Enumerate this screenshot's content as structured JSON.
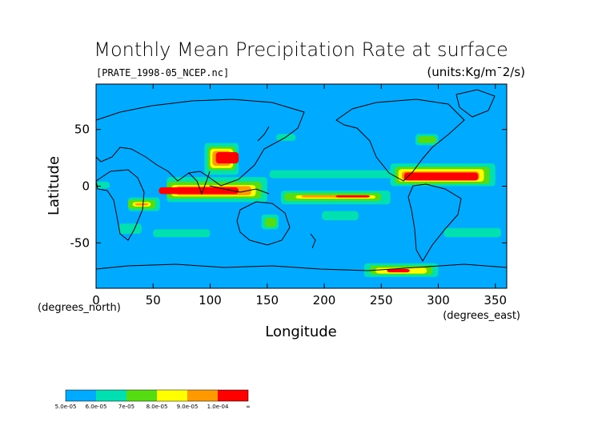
{
  "chart_data": {
    "type": "heatmap",
    "title": "Monthly Mean Precipitation Rate at surface",
    "source_file": "[PRATE_1998-05_NCEP.nc]",
    "units": "(units:Kg/m¯2/s)",
    "xlabel": "Longitude",
    "ylabel": "Latitude",
    "x_unit_note": "(degrees_east)",
    "y_unit_note": "(degrees_north)",
    "xlim": [
      0,
      360
    ],
    "ylim": [
      -90,
      90
    ],
    "x_ticks": [
      0,
      50,
      100,
      150,
      200,
      250,
      300,
      350
    ],
    "y_ticks": [
      -50,
      0,
      50
    ],
    "background_color": "#00aaff",
    "colorbar": {
      "labels": [
        "5.0e-05",
        "6.0e-05",
        "7e-05",
        "8.0e-05",
        "9.0e-05",
        "1.0e-04",
        "∞"
      ],
      "colors": [
        "#00aaff",
        "#00e0b0",
        "#55dd11",
        "#ffff00",
        "#ff9900",
        "#ff0000"
      ]
    },
    "regions": [
      {
        "level": 1,
        "lon": [
          28,
          56
        ],
        "lat": [
          -22,
          -10
        ]
      },
      {
        "level": 1,
        "lon": [
          62,
          150
        ],
        "lat": [
          -14,
          8
        ]
      },
      {
        "level": 1,
        "lon": [
          162,
          258
        ],
        "lat": [
          -16,
          -4
        ]
      },
      {
        "level": 1,
        "lon": [
          152,
          265
        ],
        "lat": [
          7,
          14
        ]
      },
      {
        "level": 1,
        "lon": [
          95,
          125
        ],
        "lat": [
          10,
          38
        ]
      },
      {
        "level": 1,
        "lon": [
          258,
          350
        ],
        "lat": [
          0,
          20
        ]
      },
      {
        "level": 1,
        "lon": [
          20,
          40
        ],
        "lat": [
          -42,
          -33
        ]
      },
      {
        "level": 1,
        "lon": [
          50,
          100
        ],
        "lat": [
          -45,
          -38
        ]
      },
      {
        "level": 1,
        "lon": [
          305,
          355
        ],
        "lat": [
          -45,
          -37
        ]
      },
      {
        "level": 1,
        "lon": [
          235,
          300
        ],
        "lat": [
          -80,
          -68
        ]
      },
      {
        "level": 1,
        "lon": [
          145,
          160
        ],
        "lat": [
          -38,
          -25
        ]
      },
      {
        "level": 1,
        "lon": [
          158,
          175
        ],
        "lat": [
          40,
          46
        ]
      },
      {
        "level": 1,
        "lon": [
          280,
          300
        ],
        "lat": [
          36,
          46
        ]
      },
      {
        "level": 1,
        "lon": [
          0,
          12
        ],
        "lat": [
          -2,
          4
        ]
      },
      {
        "level": 1,
        "lon": [
          198,
          230
        ],
        "lat": [
          -30,
          -22
        ]
      },
      {
        "level": 2,
        "lon": [
          28,
          52
        ],
        "lat": [
          -20,
          -12
        ]
      },
      {
        "level": 2,
        "lon": [
          62,
          145
        ],
        "lat": [
          -11,
          4
        ]
      },
      {
        "level": 2,
        "lon": [
          165,
          250
        ],
        "lat": [
          -13,
          -6
        ]
      },
      {
        "level": 2,
        "lon": [
          98,
          122
        ],
        "lat": [
          14,
          35
        ]
      },
      {
        "level": 2,
        "lon": [
          262,
          345
        ],
        "lat": [
          2,
          17
        ]
      },
      {
        "level": 2,
        "lon": [
          240,
          295
        ],
        "lat": [
          -78,
          -70
        ]
      },
      {
        "level": 2,
        "lon": [
          282,
          298
        ],
        "lat": [
          38,
          44
        ]
      },
      {
        "level": 2,
        "lon": [
          148,
          158
        ],
        "lat": [
          -36,
          -28
        ]
      },
      {
        "level": 3,
        "lon": [
          32,
          48
        ],
        "lat": [
          -18,
          -14
        ]
      },
      {
        "level": 3,
        "lon": [
          66,
          140
        ],
        "lat": [
          -9,
          1
        ]
      },
      {
        "level": 3,
        "lon": [
          175,
          245
        ],
        "lat": [
          -11,
          -8
        ]
      },
      {
        "level": 3,
        "lon": [
          100,
          120
        ],
        "lat": [
          16,
          33
        ]
      },
      {
        "level": 3,
        "lon": [
          265,
          340
        ],
        "lat": [
          4,
          15
        ]
      },
      {
        "level": 3,
        "lon": [
          245,
          290
        ],
        "lat": [
          -77,
          -72
        ]
      },
      {
        "level": 4,
        "lon": [
          34,
          46
        ],
        "lat": [
          -17,
          -15
        ]
      },
      {
        "level": 4,
        "lon": [
          70,
          136
        ],
        "lat": [
          -8,
          0
        ]
      },
      {
        "level": 4,
        "lon": [
          180,
          240
        ],
        "lat": [
          -10,
          -8
        ]
      },
      {
        "level": 4,
        "lon": [
          102,
          118
        ],
        "lat": [
          18,
          31
        ]
      },
      {
        "level": 4,
        "lon": [
          268,
          336
        ],
        "lat": [
          5,
          13
        ]
      },
      {
        "level": 5,
        "lon": [
          55,
          125
        ],
        "lat": [
          -7,
          -1
        ]
      },
      {
        "level": 5,
        "lon": [
          210,
          240
        ],
        "lat": [
          -10,
          -8
        ]
      },
      {
        "level": 5,
        "lon": [
          105,
          125
        ],
        "lat": [
          20,
          30
        ]
      },
      {
        "level": 5,
        "lon": [
          270,
          335
        ],
        "lat": [
          5,
          12
        ]
      },
      {
        "level": 5,
        "lon": [
          255,
          275
        ],
        "lat": [
          -76,
          -73
        ]
      }
    ]
  }
}
